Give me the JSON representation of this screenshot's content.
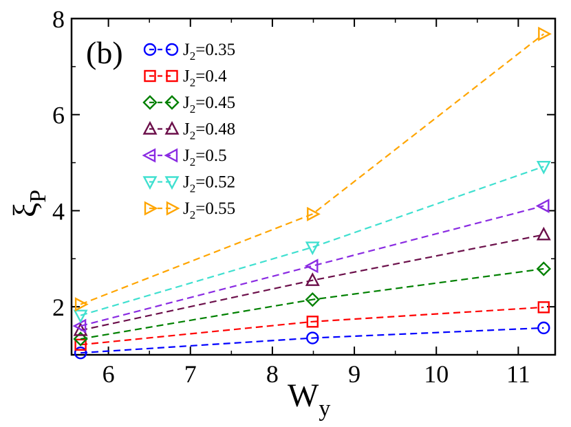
{
  "chart_data": {
    "type": "line",
    "panel_label": "(b)",
    "xlabel_main": "W",
    "xlabel_sub": "y",
    "ylabel_main": "ξ",
    "ylabel_sub": "P",
    "xlim": [
      5.55,
      11.45
    ],
    "ylim": [
      1.0,
      8.0
    ],
    "xticks": [
      6,
      7,
      8,
      9,
      10,
      11
    ],
    "yticks": [
      2,
      4,
      6,
      8
    ],
    "x": [
      5.66,
      8.49,
      11.31
    ],
    "legend_position": "top-left",
    "series": [
      {
        "label_main": "J",
        "label_sub": "2",
        "label_val": "=0.35",
        "marker": "circle",
        "color": "#0000ff",
        "values": [
          1.04,
          1.35,
          1.56
        ]
      },
      {
        "label_main": "J",
        "label_sub": "2",
        "label_val": "=0.4",
        "marker": "square",
        "color": "#ff0000",
        "values": [
          1.21,
          1.69,
          1.99
        ]
      },
      {
        "label_main": "J",
        "label_sub": "2",
        "label_val": "=0.45",
        "marker": "diamond",
        "color": "#008000",
        "values": [
          1.33,
          2.15,
          2.79
        ]
      },
      {
        "label_main": "J",
        "label_sub": "2",
        "label_val": "=0.48",
        "marker": "triangle-up",
        "color": "#6b0f4a",
        "values": [
          1.51,
          2.55,
          3.5
        ]
      },
      {
        "label_main": "J",
        "label_sub": "2",
        "label_val": "=0.5",
        "marker": "triangle-left",
        "color": "#8a2be2",
        "values": [
          1.6,
          2.85,
          4.1
        ]
      },
      {
        "label_main": "J",
        "label_sub": "2",
        "label_val": "=0.52",
        "marker": "triangle-down",
        "color": "#40e0d0",
        "values": [
          1.82,
          3.24,
          4.92
        ]
      },
      {
        "label_main": "J",
        "label_sub": "2",
        "label_val": "=0.55",
        "marker": "triangle-right",
        "color": "#ffa500",
        "values": [
          2.05,
          3.93,
          7.68
        ]
      }
    ]
  }
}
